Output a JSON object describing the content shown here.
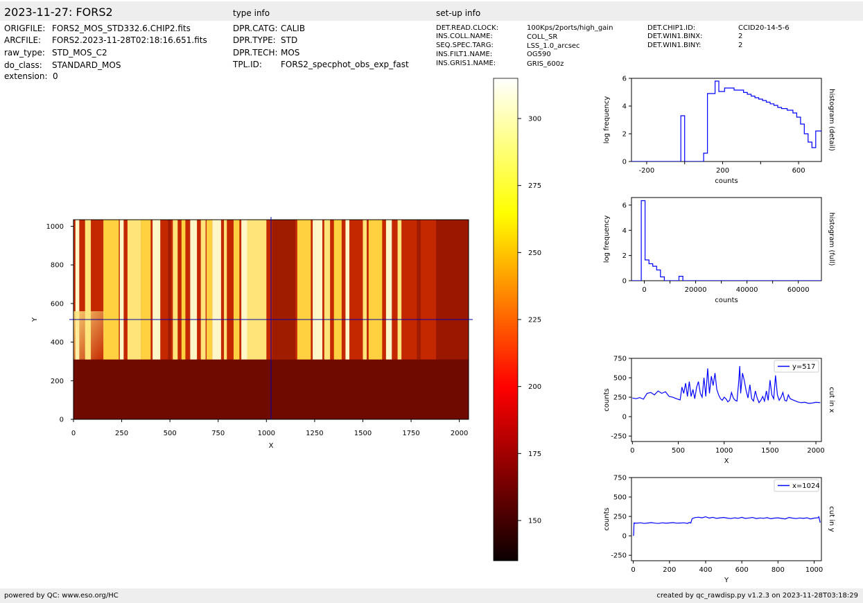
{
  "header": {
    "title": "2023-11-27: FORS2",
    "type_info_title": "type info",
    "setup_info_title": "set-up info"
  },
  "file_info": [
    {
      "key": "ORIGFILE:",
      "value": "FORS2_MOS_STD332.6.CHIP2.fits"
    },
    {
      "key": "ARCFILE:",
      "value": "FORS2.2023-11-28T02:18:16.651.fits"
    },
    {
      "key": "raw_type:",
      "value": "STD_MOS_C2"
    },
    {
      "key": "do_class:",
      "value": "STANDARD_MOS"
    },
    {
      "key": "extension:",
      "value": "0"
    }
  ],
  "type_info": [
    {
      "key": "DPR.CATG:",
      "value": "CALIB"
    },
    {
      "key": "DPR.TYPE:",
      "value": "STD"
    },
    {
      "key": "DPR.TECH:",
      "value": "MOS"
    },
    {
      "key": "TPL.ID:",
      "value": "FORS2_specphot_obs_exp_fast"
    }
  ],
  "setup_info_col1": [
    {
      "key": "DET.READ.CLOCK:",
      "value": "100Kps/2ports/high_gain"
    },
    {
      "key": "INS.COLL.NAME:",
      "value": "COLL_SR"
    },
    {
      "key": "SEQ.SPEC.TARG:",
      "value": "LSS_1.0_arcsec"
    },
    {
      "key": "INS.FILT1.NAME:",
      "value": "OG590"
    },
    {
      "key": "INS.GRIS1.NAME:",
      "value": "GRIS_600z"
    }
  ],
  "setup_info_col2": [
    {
      "key": "DET.CHIP1.ID:",
      "value": "CCID20-14-5-6"
    },
    {
      "key": "DET.WIN1.BINX:",
      "value": "2"
    },
    {
      "key": "DET.WIN1.BINY:",
      "value": "2"
    }
  ],
  "footer": {
    "left": "powered by QC: www.eso.org/HC",
    "right": "created by qc_rawdisp.py v1.2.3 on 2023-11-28T03:18:29"
  },
  "colors": {
    "line": "#0000ff",
    "crosshair": "#0000aa",
    "header_bg": "#eeeeee"
  },
  "chart_data": [
    {
      "type": "heatmap",
      "xlabel": "X",
      "ylabel": "Y",
      "xlim": [
        0,
        2048
      ],
      "ylim": [
        0,
        1034
      ],
      "xticks": [
        0,
        250,
        500,
        750,
        1000,
        1250,
        1500,
        1750,
        2000
      ],
      "yticks": [
        0,
        200,
        400,
        600,
        800,
        1000
      ],
      "crosshair": {
        "x": 1024,
        "y": 517
      },
      "colormap": "hot",
      "colorbar": {
        "min": 135,
        "max": 315,
        "ticks": [
          150,
          175,
          200,
          225,
          250,
          275,
          300
        ]
      },
      "illuminated_region": {
        "y_from": 310,
        "y_to": 1034,
        "x_from": 0,
        "x_to": 1880
      },
      "bright_bands_x": [
        [
          10,
          30
        ],
        [
          60,
          90
        ],
        [
          155,
          235
        ],
        [
          240,
          260
        ],
        [
          280,
          350
        ],
        [
          350,
          400
        ],
        [
          410,
          450
        ],
        [
          515,
          540
        ],
        [
          560,
          580
        ],
        [
          605,
          640
        ],
        [
          660,
          685
        ],
        [
          690,
          720
        ],
        [
          720,
          765
        ],
        [
          780,
          795
        ],
        [
          830,
          860
        ],
        [
          870,
          900
        ],
        [
          900,
          1000
        ],
        [
          1160,
          1230
        ],
        [
          1240,
          1290
        ],
        [
          1300,
          1330
        ],
        [
          1350,
          1390
        ],
        [
          1410,
          1430
        ],
        [
          1500,
          1520
        ],
        [
          1530,
          1600
        ],
        [
          1620,
          1650
        ],
        [
          1680,
          1700
        ]
      ],
      "dark_bands_x": [
        [
          490,
          505
        ],
        [
          1030,
          1150
        ],
        [
          1780,
          1800
        ]
      ]
    },
    {
      "type": "line",
      "title": "histogram (detail)",
      "xlabel": "counts",
      "ylabel": "log frequency",
      "xlim": [
        -280,
        720
      ],
      "ylim": [
        0,
        6
      ],
      "xticks": [
        -200,
        200,
        600
      ],
      "xticks_minor": [
        0,
        400
      ],
      "yticks": [
        0,
        2,
        4,
        6
      ],
      "steps": {
        "x": [
          -280,
          -20,
          -20,
          0,
          0,
          100,
          100,
          120,
          120,
          160,
          160,
          180,
          180,
          210,
          210,
          260,
          260,
          290,
          290,
          310,
          310,
          330,
          330,
          350,
          350,
          370,
          370,
          390,
          390,
          410,
          410,
          430,
          430,
          450,
          450,
          470,
          470,
          490,
          490,
          510,
          510,
          540,
          540,
          570,
          570,
          590,
          590,
          610,
          610,
          630,
          630,
          650,
          650,
          670,
          670,
          690,
          690,
          710,
          710,
          720
        ],
        "y": [
          0,
          0,
          3.3,
          3.3,
          0,
          0,
          0.6,
          0.6,
          4.9,
          4.9,
          5.8,
          5.8,
          5.05,
          5.05,
          5.3,
          5.3,
          5.15,
          5.15,
          5.15,
          5.15,
          4.98,
          4.98,
          4.85,
          4.85,
          4.72,
          4.72,
          4.6,
          4.6,
          4.5,
          4.5,
          4.4,
          4.4,
          4.28,
          4.28,
          4.16,
          4.16,
          4.05,
          4.05,
          3.9,
          3.9,
          3.82,
          3.82,
          3.7,
          3.7,
          3.5,
          3.5,
          3.2,
          3.2,
          2.7,
          2.7,
          2.0,
          2.0,
          1.4,
          1.4,
          1.0,
          1.0,
          2.2,
          2.2,
          2.2,
          2.2
        ]
      }
    },
    {
      "type": "line",
      "title": "histogram (full)",
      "xlabel": "counts",
      "ylabel": "log frequency",
      "xlim": [
        -5000,
        69000
      ],
      "ylim": [
        0,
        6.6
      ],
      "xticks": [
        0,
        20000,
        40000,
        60000
      ],
      "xticks_minor": [
        10000,
        30000,
        50000
      ],
      "yticks": [
        0,
        2,
        4,
        6
      ],
      "steps": {
        "x": [
          -5000,
          -1200,
          -1200,
          300,
          300,
          1800,
          1800,
          3300,
          3300,
          4800,
          4800,
          6300,
          6300,
          7800,
          7800,
          13500,
          13500,
          15000,
          15000,
          69000
        ],
        "y": [
          0,
          0,
          6.35,
          6.35,
          1.65,
          1.65,
          1.35,
          1.35,
          1.15,
          1.15,
          0.85,
          0.85,
          0.3,
          0.3,
          0,
          0,
          0.35,
          0.35,
          0,
          0
        ]
      }
    },
    {
      "type": "line",
      "title": "cut in x",
      "xlabel": "X",
      "ylabel": "counts",
      "xlim": [
        -10,
        2060
      ],
      "ylim": [
        -320,
        750
      ],
      "xticks": [
        0,
        500,
        1000,
        1500,
        2000
      ],
      "yticks": [
        -250,
        0,
        250,
        500,
        750
      ],
      "legend": "y=517",
      "legend_position": "top-right",
      "series": [
        {
          "name": "y=517",
          "x": [
            0,
            40,
            80,
            120,
            160,
            200,
            240,
            280,
            320,
            360,
            400,
            440,
            480,
            520,
            540,
            560,
            580,
            600,
            620,
            640,
            660,
            680,
            700,
            720,
            740,
            760,
            780,
            800,
            820,
            840,
            860,
            880,
            900,
            920,
            940,
            960,
            980,
            1000,
            1020,
            1040,
            1060,
            1080,
            1100,
            1120,
            1140,
            1160,
            1170,
            1180,
            1200,
            1220,
            1240,
            1260,
            1280,
            1300,
            1320,
            1340,
            1360,
            1380,
            1400,
            1420,
            1440,
            1460,
            1480,
            1500,
            1520,
            1540,
            1560,
            1580,
            1600,
            1620,
            1640,
            1660,
            1680,
            1700,
            1720,
            1760,
            1800,
            1840,
            1880,
            1920,
            1960,
            2000,
            2047
          ],
          "y": [
            240,
            230,
            245,
            225,
            300,
            310,
            280,
            330,
            300,
            320,
            260,
            250,
            230,
            215,
            380,
            300,
            430,
            260,
            450,
            260,
            350,
            230,
            380,
            450,
            300,
            250,
            500,
            260,
            620,
            300,
            520,
            400,
            560,
            350,
            280,
            230,
            210,
            250,
            230,
            190,
            210,
            310,
            240,
            210,
            200,
            470,
            650,
            300,
            560,
            460,
            330,
            240,
            410,
            230,
            200,
            330,
            240,
            180,
            210,
            260,
            200,
            330,
            210,
            470,
            280,
            230,
            530,
            280,
            210,
            250,
            310,
            210,
            200,
            280,
            230,
            210,
            190,
            180,
            185,
            170,
            175,
            185,
            180
          ]
        }
      ]
    },
    {
      "type": "line",
      "title": "cut in y",
      "xlabel": "Y",
      "ylabel": "counts",
      "xlim": [
        -10,
        1040
      ],
      "ylim": [
        -320,
        750
      ],
      "xticks": [
        0,
        200,
        400,
        600,
        800,
        1000
      ],
      "yticks": [
        -250,
        0,
        250,
        500,
        750
      ],
      "legend": "x=1024",
      "legend_position": "top-right",
      "series": [
        {
          "name": "x=1024",
          "x": [
            0,
            2,
            4,
            6,
            8,
            20,
            40,
            60,
            80,
            100,
            120,
            140,
            160,
            180,
            200,
            220,
            240,
            260,
            280,
            300,
            310,
            318,
            325,
            340,
            360,
            380,
            400,
            420,
            440,
            460,
            480,
            500,
            520,
            540,
            560,
            580,
            600,
            620,
            640,
            660,
            680,
            700,
            720,
            740,
            760,
            780,
            800,
            820,
            840,
            860,
            880,
            900,
            920,
            940,
            960,
            980,
            1000,
            1020,
            1026,
            1033
          ],
          "y": [
            0,
            10,
            170,
            160,
            165,
            162,
            168,
            160,
            165,
            170,
            163,
            160,
            168,
            162,
            166,
            170,
            163,
            165,
            168,
            160,
            172,
            165,
            220,
            235,
            240,
            232,
            245,
            228,
            238,
            225,
            232,
            236,
            228,
            222,
            232,
            226,
            238,
            224,
            230,
            236,
            222,
            230,
            226,
            234,
            220,
            228,
            232,
            224,
            218,
            236,
            228,
            222,
            230,
            225,
            232,
            218,
            228,
            232,
            245,
            170
          ]
        }
      ]
    }
  ]
}
